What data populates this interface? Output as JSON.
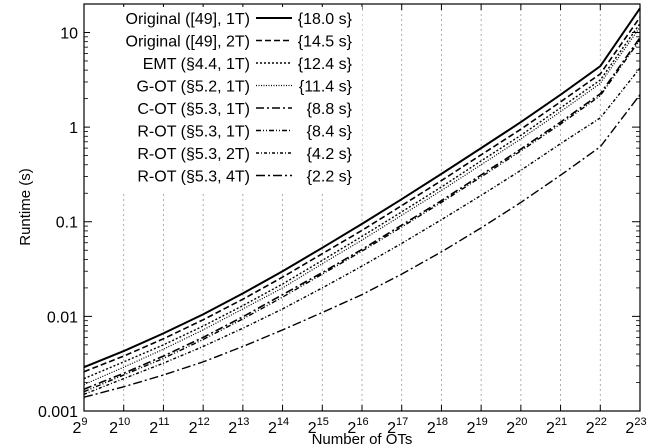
{
  "chart_data": {
    "type": "line",
    "xlabel": "Number of OTs",
    "ylabel": "Runtime (s)",
    "x_scale": "log2",
    "y_scale": "log10",
    "xlim": [
      "2^9",
      "2^23"
    ],
    "ylim": [
      0.001,
      20
    ],
    "x_ticks": [
      {
        "base": "2",
        "exp": "9"
      },
      {
        "base": "2",
        "exp": "10"
      },
      {
        "base": "2",
        "exp": "11"
      },
      {
        "base": "2",
        "exp": "12"
      },
      {
        "base": "2",
        "exp": "13"
      },
      {
        "base": "2",
        "exp": "14"
      },
      {
        "base": "2",
        "exp": "15"
      },
      {
        "base": "2",
        "exp": "16"
      },
      {
        "base": "2",
        "exp": "17"
      },
      {
        "base": "2",
        "exp": "18"
      },
      {
        "base": "2",
        "exp": "19"
      },
      {
        "base": "2",
        "exp": "20"
      },
      {
        "base": "2",
        "exp": "21"
      },
      {
        "base": "2",
        "exp": "22"
      },
      {
        "base": "2",
        "exp": "23"
      }
    ],
    "y_ticks": [
      {
        "value": 0.001,
        "label": "0.001"
      },
      {
        "value": 0.01,
        "label": "0.01"
      },
      {
        "value": 0.1,
        "label": "0.1"
      },
      {
        "value": 1,
        "label": "1"
      },
      {
        "value": 10,
        "label": "10"
      }
    ],
    "grid": "vertical dotted",
    "legend_position": "top-left",
    "x_exponents": [
      9,
      10,
      11,
      12,
      13,
      14,
      15,
      16,
      17,
      18,
      19,
      20,
      21,
      22,
      23
    ],
    "series": [
      {
        "name": "Original ([49], 1T)",
        "end_label": "{18.0 s}",
        "dash": "solid",
        "width": 2.0,
        "y": [
          0.0029,
          0.0043,
          0.0066,
          0.0105,
          0.0175,
          0.03,
          0.053,
          0.095,
          0.173,
          0.32,
          0.6,
          1.13,
          2.2,
          4.4,
          18.0
        ]
      },
      {
        "name": "Original ([49], 2T)",
        "end_label": "{14.5 s}",
        "dash": "6,3",
        "width": 1.6,
        "y": [
          0.0026,
          0.0038,
          0.0058,
          0.0092,
          0.0152,
          0.026,
          0.046,
          0.081,
          0.148,
          0.272,
          0.51,
          0.95,
          1.85,
          3.65,
          14.5
        ]
      },
      {
        "name": "EMT (§4.4, 1T)",
        "end_label": "{12.4 s}",
        "dash": "2,2",
        "width": 1.4,
        "y": [
          0.0022,
          0.0033,
          0.005,
          0.0079,
          0.013,
          0.022,
          0.039,
          0.07,
          0.127,
          0.233,
          0.44,
          0.82,
          1.6,
          3.15,
          12.4
        ]
      },
      {
        "name": "G-OT (§5.2, 1T)",
        "end_label": "{11.4 s}",
        "dash": "1,1.5",
        "width": 1.2,
        "y": [
          0.0019,
          0.0029,
          0.0045,
          0.0072,
          0.012,
          0.02,
          0.036,
          0.064,
          0.117,
          0.214,
          0.4,
          0.75,
          1.46,
          2.9,
          11.4
        ]
      },
      {
        "name": "C-OT (§5.3, 1T)",
        "end_label": "{8.8 s}",
        "dash": "8,3,2,3",
        "width": 1.6,
        "y": [
          0.0017,
          0.0025,
          0.0038,
          0.006,
          0.0099,
          0.017,
          0.029,
          0.051,
          0.092,
          0.167,
          0.312,
          0.585,
          1.13,
          2.25,
          8.8
        ]
      },
      {
        "name": "R-OT (§5.3, 1T)",
        "end_label": "{8.4 s}",
        "dash": "5,2,1,2,1,2",
        "width": 1.4,
        "y": [
          0.0016,
          0.0024,
          0.0036,
          0.0057,
          0.0094,
          0.016,
          0.028,
          0.049,
          0.088,
          0.16,
          0.298,
          0.56,
          1.08,
          2.15,
          8.4
        ]
      },
      {
        "name": "R-OT (§5.3, 2T)",
        "end_label": "{4.2 s}",
        "dash": "3,2,1,2",
        "width": 1.4,
        "y": [
          0.0015,
          0.0022,
          0.0032,
          0.0048,
          0.0075,
          0.012,
          0.02,
          0.034,
          0.059,
          0.105,
          0.19,
          0.35,
          0.67,
          1.25,
          4.2
        ]
      },
      {
        "name": "R-OT (§5.3, 4T)",
        "end_label": "{2.2 s}",
        "dash": "9,3,2,3",
        "width": 1.4,
        "y": [
          0.0014,
          0.0018,
          0.0024,
          0.0033,
          0.0048,
          0.0072,
          0.011,
          0.017,
          0.028,
          0.048,
          0.086,
          0.16,
          0.31,
          0.62,
          2.2
        ]
      }
    ]
  }
}
